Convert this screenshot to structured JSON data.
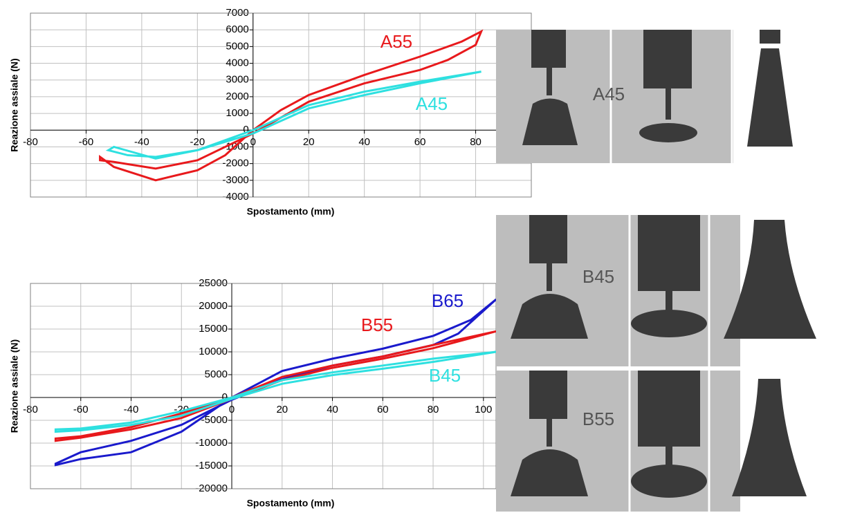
{
  "chart_data": [
    {
      "type": "line",
      "x_label": "Spostamento (mm)",
      "y_label": "Reazione assiale (N)",
      "xlim": [
        -80,
        100
      ],
      "ylim": [
        -4000,
        7000
      ],
      "xticks": [
        -80,
        -60,
        -40,
        -20,
        0,
        20,
        40,
        60,
        80
      ],
      "yticks": [
        -4000,
        -3000,
        -2000,
        -1000,
        0,
        1000,
        2000,
        3000,
        4000,
        5000,
        6000,
        7000
      ],
      "grid": true,
      "series": [
        {
          "name": "A55",
          "color": "#e8191c",
          "x": [
            0,
            10,
            20,
            40,
            60,
            75,
            82,
            80,
            70,
            60,
            40,
            20,
            0,
            -10,
            -20,
            -35,
            -50,
            -55,
            -55,
            -50,
            -35,
            -20,
            -10,
            0
          ],
          "values": [
            0,
            1200,
            2100,
            3300,
            4400,
            5300,
            5900,
            5100,
            4200,
            3600,
            2800,
            1700,
            -200,
            -1000,
            -1800,
            -2300,
            -1900,
            -1800,
            -1600,
            -2200,
            -3000,
            -2400,
            -1500,
            0
          ]
        },
        {
          "name": "A45",
          "color": "#2ee0e0",
          "x": [
            0,
            20,
            40,
            60,
            82,
            60,
            40,
            20,
            0,
            -20,
            -35,
            -50,
            -52,
            -45,
            -35,
            -20,
            0
          ],
          "values": [
            0,
            1500,
            2300,
            2900,
            3500,
            2800,
            2100,
            1300,
            -200,
            -1200,
            -1700,
            -1000,
            -1200,
            -1500,
            -1600,
            -1200,
            0
          ]
        }
      ]
    },
    {
      "type": "line",
      "x_label": "Spostamento (mm)",
      "y_label": "Reazione assiale (N)",
      "xlim": [
        -80,
        105
      ],
      "ylim": [
        -20000,
        25000
      ],
      "xticks": [
        -80,
        -60,
        -40,
        -20,
        0,
        20,
        40,
        60,
        80,
        100
      ],
      "yticks": [
        -20000,
        -15000,
        -10000,
        -5000,
        0,
        5000,
        10000,
        15000,
        20000,
        25000
      ],
      "grid": true,
      "series": [
        {
          "name": "B65",
          "color": "#1a1acc",
          "x": [
            0,
            20,
            40,
            60,
            80,
            95,
            105,
            90,
            80,
            60,
            40,
            20,
            0,
            -20,
            -40,
            -60,
            -70,
            -70,
            -60,
            -40,
            -20,
            0
          ],
          "values": [
            0,
            5800,
            8500,
            10700,
            13500,
            17000,
            21500,
            14000,
            11500,
            9000,
            7000,
            4000,
            -500,
            -6000,
            -9500,
            -12000,
            -14500,
            -14800,
            -13500,
            -12000,
            -7500,
            0
          ]
        },
        {
          "name": "B55",
          "color": "#e8191c",
          "x": [
            0,
            20,
            40,
            60,
            80,
            105,
            80,
            60,
            40,
            20,
            0,
            -20,
            -40,
            -60,
            -70,
            -70,
            -60,
            -40,
            -20,
            0
          ],
          "values": [
            0,
            4500,
            7000,
            9000,
            11500,
            14500,
            10800,
            8500,
            6500,
            3800,
            -300,
            -4500,
            -7000,
            -8800,
            -9500,
            -9000,
            -8500,
            -6500,
            -3500,
            0
          ]
        },
        {
          "name": "B45",
          "color": "#2ee0e0",
          "x": [
            0,
            20,
            40,
            60,
            80,
            105,
            80,
            60,
            40,
            20,
            0,
            -20,
            -40,
            -60,
            -70,
            -70,
            -60,
            -40,
            -20,
            0
          ],
          "values": [
            0,
            3800,
            5500,
            7000,
            8500,
            10000,
            7800,
            6300,
            4900,
            3000,
            -300,
            -4000,
            -6000,
            -7200,
            -7500,
            -7000,
            -6800,
            -5500,
            -3000,
            0
          ]
        }
      ]
    }
  ],
  "photos": [
    {
      "label": "A45"
    },
    {
      "label": "B45"
    },
    {
      "label": "B55"
    }
  ]
}
